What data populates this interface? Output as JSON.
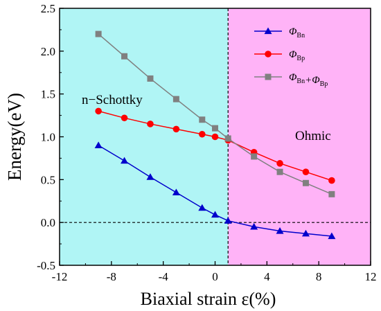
{
  "chart_data": {
    "type": "line",
    "xlabel": "Biaxial strain ε(%)",
    "ylabel": "Energy(eV)",
    "xlim": [
      -12,
      12
    ],
    "ylim": [
      -0.5,
      2.5
    ],
    "xticks": [
      -12,
      -8,
      -4,
      0,
      4,
      8,
      12
    ],
    "xtick_labels": [
      "-12",
      "-8",
      "-4",
      "0",
      "4",
      "8",
      "12"
    ],
    "yticks": [
      -0.5,
      0.0,
      0.5,
      1.0,
      1.5,
      2.0,
      2.5
    ],
    "ytick_labels": [
      "-0.5",
      "0.0",
      "0.5",
      "1.0",
      "1.5",
      "2.0",
      "2.5"
    ],
    "regions": [
      {
        "label": "n−Schottky",
        "x_range": [
          -12,
          1
        ],
        "color": "#b0f5f5"
      },
      {
        "label": "Ohmic",
        "x_range": [
          1,
          12
        ],
        "color": "#ffb3f7"
      }
    ],
    "reference_lines": [
      {
        "orientation": "vertical",
        "value": 1,
        "style": "dashed"
      },
      {
        "orientation": "horizontal",
        "value": 0,
        "style": "dashed"
      }
    ],
    "legend_position": "top-right",
    "x": [
      -9,
      -7,
      -5,
      -3,
      -1,
      0,
      1,
      3,
      5,
      7,
      9
    ],
    "series": [
      {
        "name": "ΦBn",
        "legend_main": "Φ",
        "legend_sub": "Bn",
        "color": "#0000cc",
        "marker": "triangle",
        "values": [
          0.9,
          0.72,
          0.53,
          0.35,
          0.17,
          0.09,
          0.02,
          -0.05,
          -0.1,
          -0.13,
          -0.16
        ]
      },
      {
        "name": "ΦBp",
        "legend_main": "Φ",
        "legend_sub": "Bp",
        "color": "#ff0000",
        "marker": "circle",
        "values": [
          1.3,
          1.22,
          1.15,
          1.09,
          1.03,
          1.0,
          0.96,
          0.82,
          0.69,
          0.59,
          0.49
        ]
      },
      {
        "name": "ΦBn+ΦBp",
        "legend_parts": [
          [
            "Φ",
            "Bn"
          ],
          [
            "+Φ",
            "Bp"
          ]
        ],
        "color": "#808080",
        "marker": "square",
        "values": [
          2.2,
          1.94,
          1.68,
          1.44,
          1.2,
          1.1,
          0.98,
          0.77,
          0.59,
          0.46,
          0.33
        ]
      }
    ]
  }
}
